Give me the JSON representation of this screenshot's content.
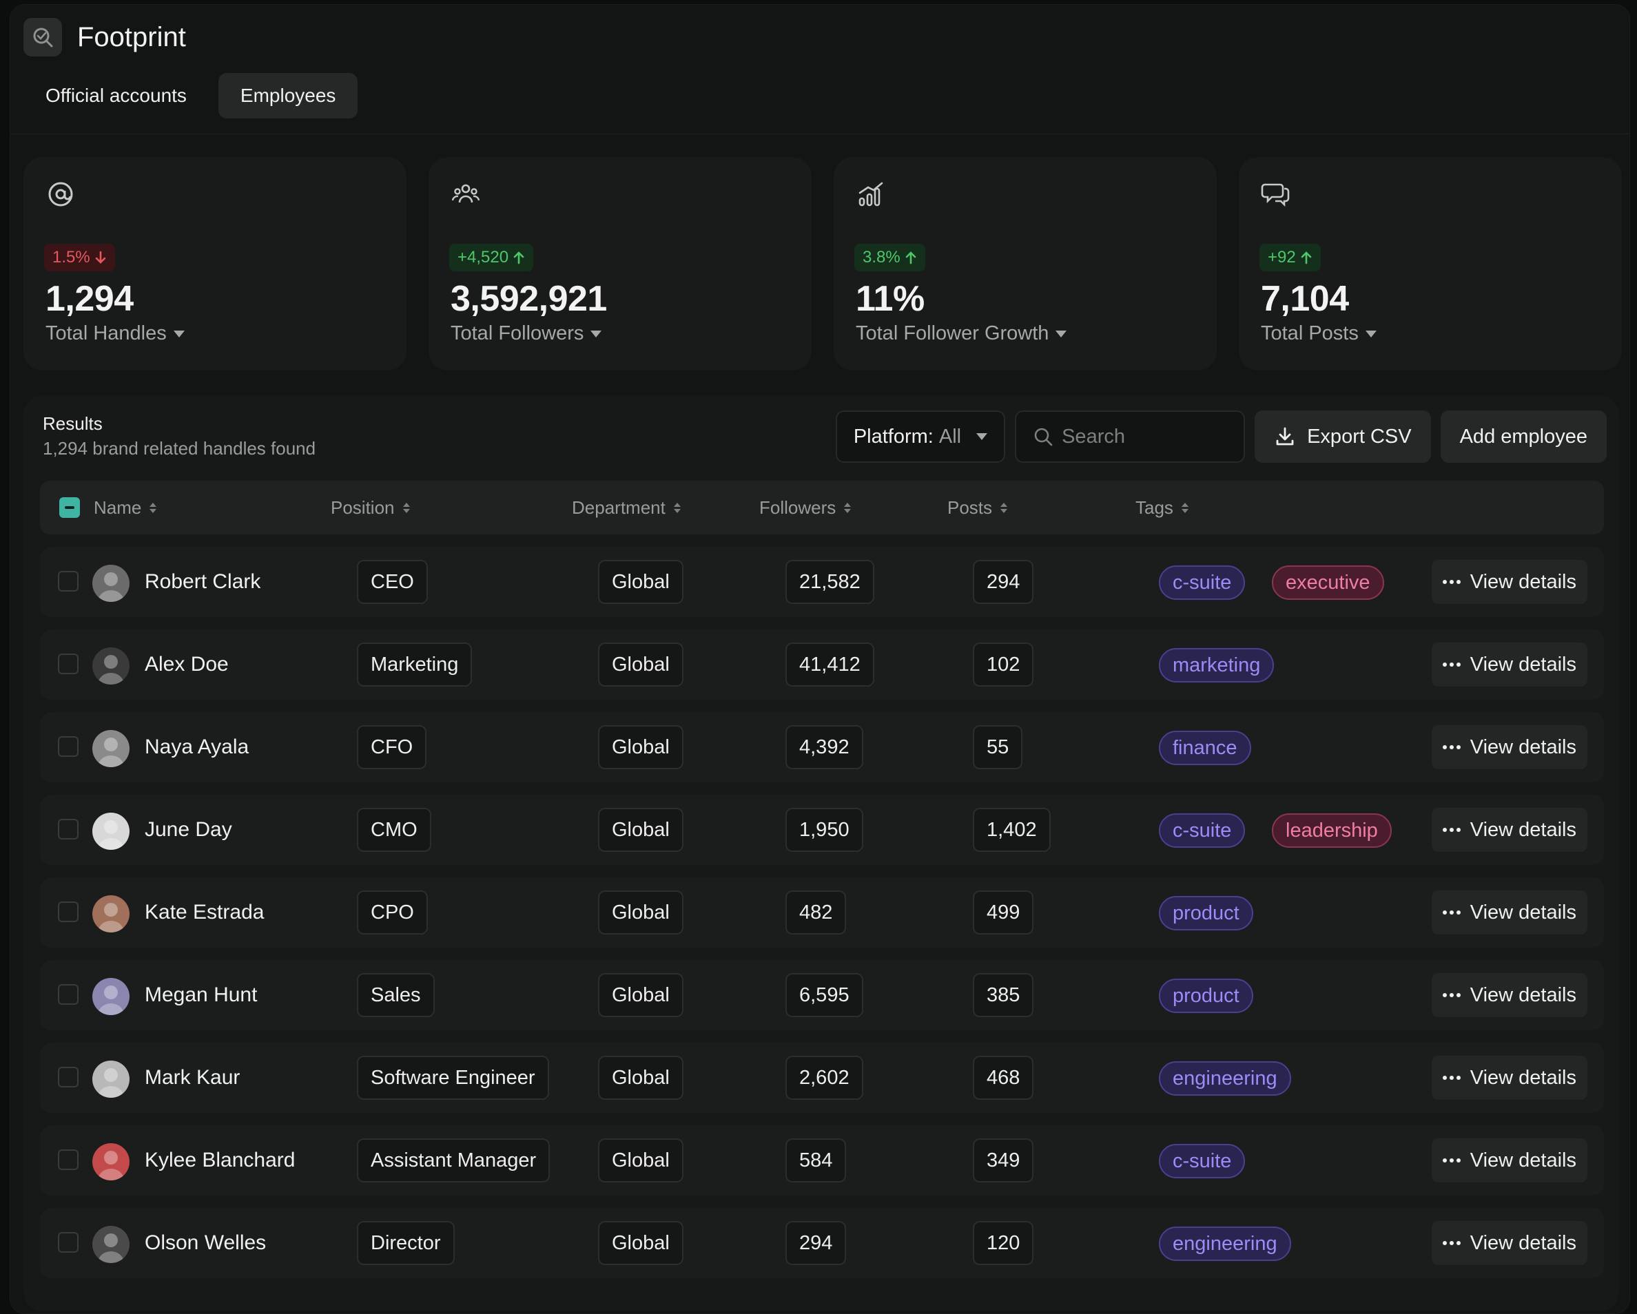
{
  "app": {
    "title": "Footprint"
  },
  "tabs": [
    {
      "label": "Official accounts",
      "active": false
    },
    {
      "label": "Employees",
      "active": true
    }
  ],
  "stats": [
    {
      "icon": "at-sign-icon",
      "delta": "1.5%",
      "direction": "down",
      "value": "1,294",
      "label": "Total Handles"
    },
    {
      "icon": "users-icon",
      "delta": "+4,520",
      "direction": "up",
      "value": "3,592,921",
      "label": "Total Followers"
    },
    {
      "icon": "bar-chart-icon",
      "delta": "3.8%",
      "direction": "up",
      "value": "11%",
      "label": "Total Follower Growth"
    },
    {
      "icon": "chat-bubbles-icon",
      "delta": "+92",
      "direction": "up",
      "value": "7,104",
      "label": "Total Posts"
    }
  ],
  "results": {
    "title": "Results",
    "subtitle": "1,294 brand related handles found",
    "platform_label": "Platform:",
    "platform_value": "All",
    "search_placeholder": "Search",
    "export_label": "Export CSV",
    "add_label": "Add employee"
  },
  "columns": [
    "Name",
    "Position",
    "Department",
    "Followers",
    "Posts",
    "Tags"
  ],
  "action_label": "View details",
  "rows": [
    {
      "name": "Robert Clark",
      "position": "CEO",
      "department": "Global",
      "followers": "21,582",
      "posts": "294",
      "tags": [
        {
          "label": "c-suite",
          "color": "purple"
        },
        {
          "label": "executive",
          "color": "pink"
        }
      ],
      "avatar_bg": "#6b6b6b"
    },
    {
      "name": "Alex Doe",
      "position": "Marketing",
      "department": "Global",
      "followers": "41,412",
      "posts": "102",
      "tags": [
        {
          "label": "marketing",
          "color": "purple"
        }
      ],
      "avatar_bg": "#3a3a3a"
    },
    {
      "name": "Naya Ayala",
      "position": "CFO",
      "department": "Global",
      "followers": "4,392",
      "posts": "55",
      "tags": [
        {
          "label": "finance",
          "color": "purple"
        }
      ],
      "avatar_bg": "#8a8a8a"
    },
    {
      "name": "June Day",
      "position": "CMO",
      "department": "Global",
      "followers": "1,950",
      "posts": "1,402",
      "tags": [
        {
          "label": "c-suite",
          "color": "purple"
        },
        {
          "label": "leadership",
          "color": "pink"
        }
      ],
      "avatar_bg": "#d8d8d8"
    },
    {
      "name": "Kate Estrada",
      "position": "CPO",
      "department": "Global",
      "followers": "482",
      "posts": "499",
      "tags": [
        {
          "label": "product",
          "color": "purple"
        }
      ],
      "avatar_bg": "#a0705a"
    },
    {
      "name": "Megan Hunt",
      "position": "Sales",
      "department": "Global",
      "followers": "6,595",
      "posts": "385",
      "tags": [
        {
          "label": "product",
          "color": "purple"
        }
      ],
      "avatar_bg": "#8a86b0"
    },
    {
      "name": "Mark Kaur",
      "position": "Software Engineer",
      "department": "Global",
      "followers": "2,602",
      "posts": "468",
      "tags": [
        {
          "label": "engineering",
          "color": "purple"
        }
      ],
      "avatar_bg": "#b8b8b8"
    },
    {
      "name": "Kylee Blanchard",
      "position": "Assistant Manager",
      "department": "Global",
      "followers": "584",
      "posts": "349",
      "tags": [
        {
          "label": "c-suite",
          "color": "purple"
        }
      ],
      "avatar_bg": "#c24a4a"
    },
    {
      "name": "Olson Welles",
      "position": "Director",
      "department": "Global",
      "followers": "294",
      "posts": "120",
      "tags": [
        {
          "label": "engineering",
          "color": "purple"
        }
      ],
      "avatar_bg": "#4a4a4a"
    }
  ]
}
